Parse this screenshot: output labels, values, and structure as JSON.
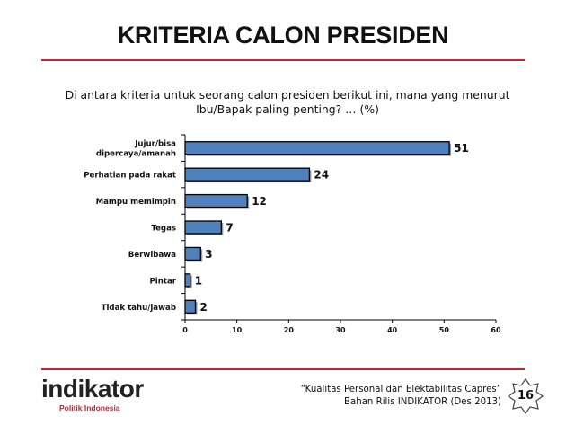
{
  "slide": {
    "title": "KRITERIA CALON PRESIDEN",
    "question_line1": "Di antara kriteria untuk seorang calon presiden berikut ini, mana yang menurut",
    "question_line2": "Ibu/Bapak paling penting? … (%)"
  },
  "footer": {
    "logo_word": "indikator",
    "logo_tagline": "Politik Indonesia",
    "source_line1": "“Kualitas Personal dan Elektabilitas Capres”",
    "source_line2": "Bahan Rilis INDIKATOR (Des 2013)",
    "page_number": "16"
  },
  "colors": {
    "accent": "#c0262d",
    "bar": "#4f81bd",
    "bar_edge": "#000000"
  },
  "chart_data": {
    "type": "bar",
    "orientation": "horizontal",
    "categories": [
      [
        "Jujur/bisa",
        "dipercaya/amanah"
      ],
      [
        "Perhatian pada rakat"
      ],
      [
        "Mampu memimpin"
      ],
      [
        "Tegas"
      ],
      [
        "Berwibawa"
      ],
      [
        "Pintar"
      ],
      [
        "Tidak tahu/jawab"
      ]
    ],
    "values": [
      51,
      24,
      12,
      7,
      3,
      1,
      2
    ],
    "xlim": [
      0,
      60
    ],
    "xticks": [
      0,
      10,
      20,
      30,
      40,
      50,
      60
    ],
    "grid": false,
    "data_labels": true
  }
}
